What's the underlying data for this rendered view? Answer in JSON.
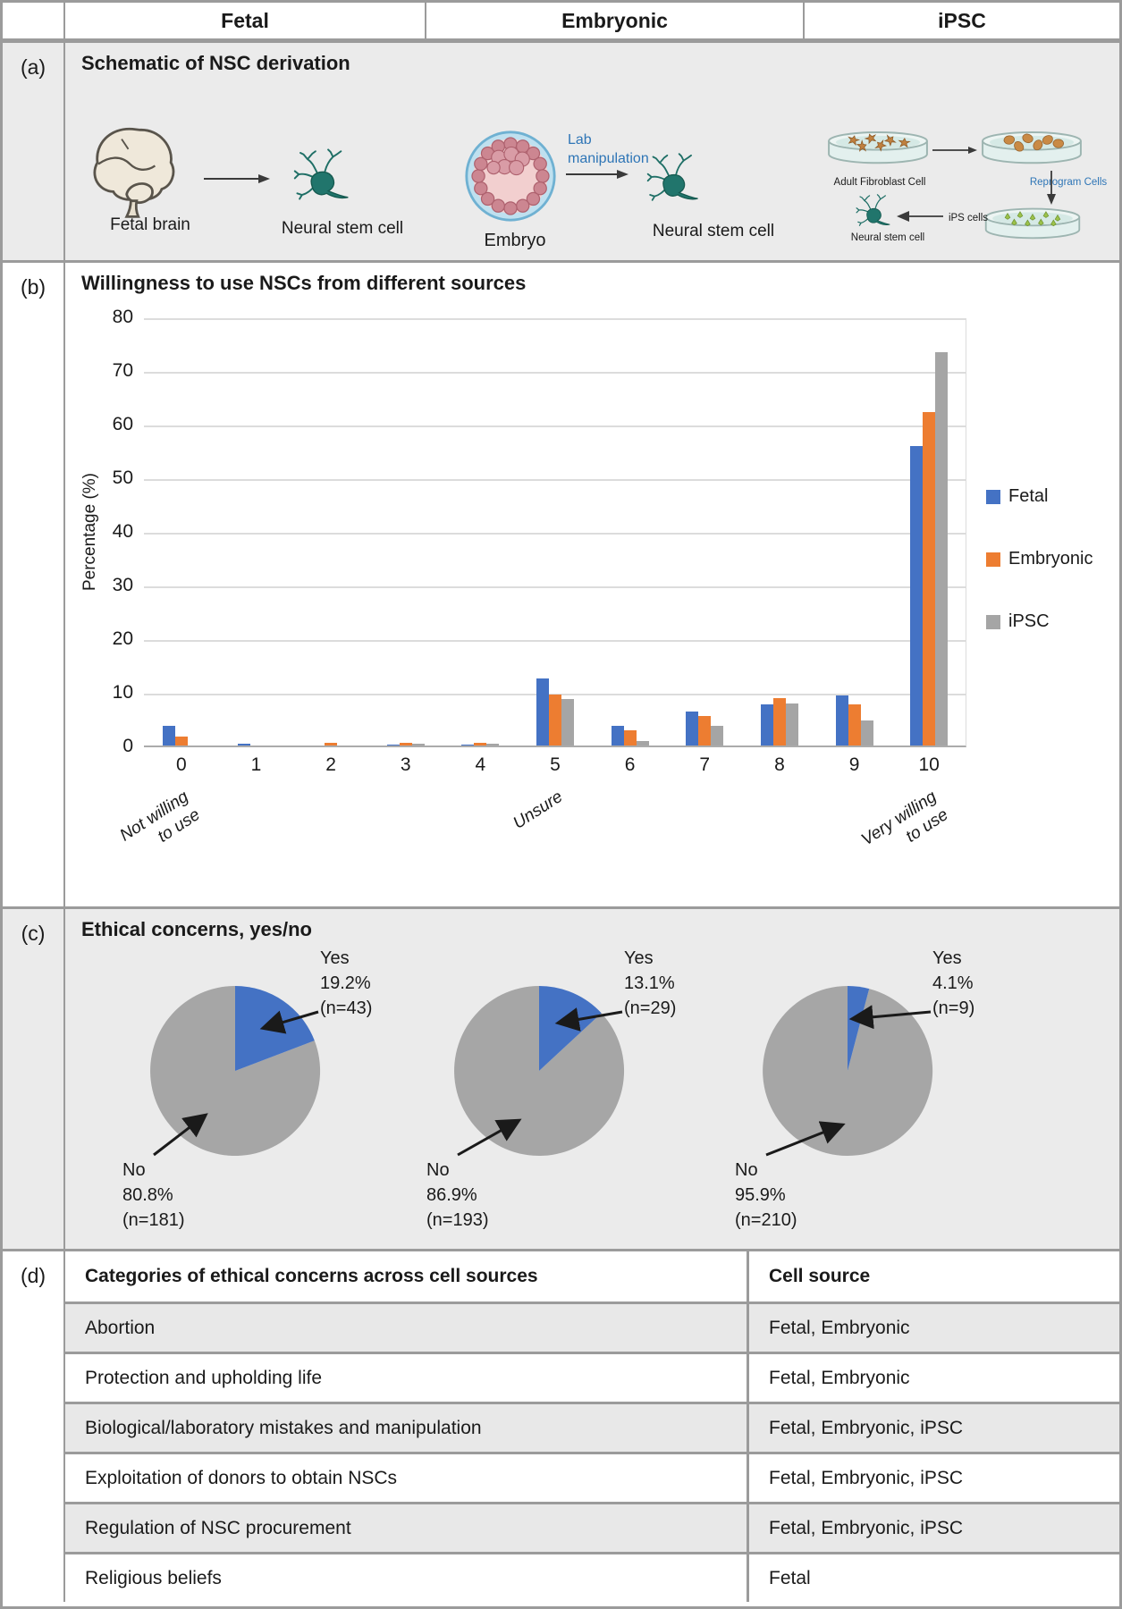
{
  "header": {
    "columns": [
      "Fetal",
      "Embryonic",
      "iPSC"
    ]
  },
  "panels": {
    "a": {
      "label": "(a)",
      "title": "Schematic of NSC derivation",
      "fetal": {
        "source_label": "Fetal brain",
        "result_label": "Neural stem cell"
      },
      "embryonic": {
        "source_label": "Embryo",
        "process_label_line1": "Lab",
        "process_label_line2": "manipulation",
        "result_label": "Neural stem cell"
      },
      "ipsc": {
        "dish1_label": "Adult Fibroblast Cell",
        "process_label": "Reprogram Cells",
        "transfer_label": "iPS cells",
        "result_label": "Neural stem cell"
      }
    },
    "b": {
      "label": "(b)"
    },
    "c": {
      "label": "(c)",
      "title": "Ethical concerns, yes/no"
    },
    "d": {
      "label": "(d)",
      "table": {
        "col1_header": "Categories of ethical concerns across cell sources",
        "col2_header": "Cell source",
        "rows": [
          [
            "Abortion",
            "Fetal, Embryonic"
          ],
          [
            "Protection and upholding life",
            "Fetal, Embryonic"
          ],
          [
            "Biological/laboratory mistakes and manipulation",
            "Fetal, Embryonic, iPSC"
          ],
          [
            "Exploitation of donors to obtain NSCs",
            "Fetal, Embryonic, iPSC"
          ],
          [
            "Regulation of NSC procurement",
            "Fetal, Embryonic, iPSC"
          ],
          [
            "Religious beliefs",
            "Fetal"
          ]
        ]
      }
    }
  },
  "colors": {
    "fetal_blue": "#4472C4",
    "embryonic_orange": "#ED7D31",
    "ipsc_gray": "#A5A5A5",
    "pie_no_gray": "#A6A6A6",
    "schematic_blue": "#2E75B6"
  },
  "chart_data": [
    {
      "type": "bar",
      "title": "Willingness to use NSCs from different sources",
      "categories": [
        "0",
        "1",
        "2",
        "3",
        "4",
        "5",
        "6",
        "7",
        "8",
        "9",
        "10"
      ],
      "series": [
        {
          "name": "Fetal",
          "color": "#4472C4",
          "values": [
            3.6,
            0.4,
            0,
            0.2,
            0.2,
            12.5,
            3.6,
            6.3,
            7.6,
            9.4,
            55.8
          ]
        },
        {
          "name": "Embryonic",
          "color": "#ED7D31",
          "values": [
            1.6,
            0,
            0.5,
            0.5,
            0.5,
            9.5,
            2.9,
            5.5,
            8.9,
            7.7,
            62.1
          ]
        },
        {
          "name": "iPSC",
          "color": "#A5A5A5",
          "values": [
            0,
            0,
            0,
            0.4,
            0.4,
            8.7,
            0.9,
            3.7,
            7.8,
            4.6,
            73.4
          ]
        }
      ],
      "xlabel": "",
      "ylabel": "Percentage (%)",
      "ylim": [
        0,
        80
      ],
      "ytick_step": 10,
      "grid": true,
      "legend_position": "right",
      "axis_annotations": [
        {
          "at": "0",
          "lines": [
            "Not willing",
            "to use"
          ]
        },
        {
          "at": "5",
          "lines": [
            "Unsure"
          ]
        },
        {
          "at": "10",
          "lines": [
            "Very willing",
            "to use"
          ]
        }
      ]
    },
    {
      "type": "pie",
      "group": "Fetal",
      "slices": [
        {
          "label": "Yes",
          "pct": 19.2,
          "n": 43,
          "color": "#4472C4"
        },
        {
          "label": "No",
          "pct": 80.8,
          "n": 181,
          "color": "#A6A6A6"
        }
      ]
    },
    {
      "type": "pie",
      "group": "Embryonic",
      "slices": [
        {
          "label": "Yes",
          "pct": 13.1,
          "n": 29,
          "color": "#4472C4"
        },
        {
          "label": "No",
          "pct": 86.9,
          "n": 193,
          "color": "#A6A6A6"
        }
      ]
    },
    {
      "type": "pie",
      "group": "iPSC",
      "slices": [
        {
          "label": "Yes",
          "pct": 4.1,
          "n": 9,
          "color": "#4472C4"
        },
        {
          "label": "No",
          "pct": 95.9,
          "n": 210,
          "color": "#A6A6A6"
        }
      ]
    }
  ]
}
